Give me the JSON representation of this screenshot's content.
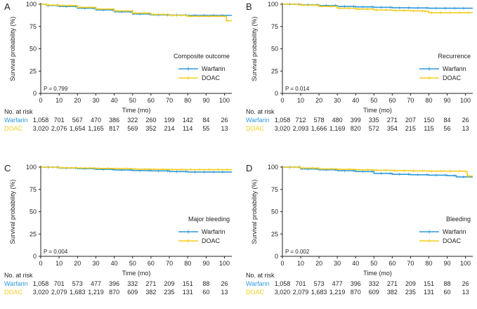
{
  "colors": {
    "warfarin": "#2e9ad8",
    "doac": "#f2cd1f",
    "axis": "#231f20"
  },
  "common": {
    "xlabel": "Time (mo)",
    "ylabel": "Survival probability (%)",
    "risk_header": "No. at risk",
    "xticks": [
      0,
      10,
      20,
      30,
      40,
      50,
      60,
      70,
      80,
      90,
      100
    ],
    "yticks": [
      0,
      25,
      50,
      75,
      100
    ],
    "xlim": [
      0,
      104
    ],
    "ylim": [
      0,
      100
    ]
  },
  "chart_data": [
    {
      "panel": "A",
      "type": "line",
      "title": "Composite outcome",
      "p_value": "P = 0.799",
      "legend_position": "bottom-right",
      "series": [
        {
          "name": "Warfarin",
          "color": "#2e9ad8",
          "points": [
            [
              0,
              100
            ],
            [
              3,
              98.6
            ],
            [
              10,
              97.5
            ],
            [
              20,
              95.5
            ],
            [
              30,
              93.5
            ],
            [
              40,
              91.5
            ],
            [
              50,
              89
            ],
            [
              60,
              88
            ],
            [
              70,
              87.8
            ],
            [
              80,
              87.5
            ],
            [
              90,
              87.5
            ],
            [
              104,
              87.5
            ]
          ]
        },
        {
          "name": "DOAC",
          "color": "#f2cd1f",
          "points": [
            [
              0,
              100
            ],
            [
              3,
              99
            ],
            [
              10,
              98.5
            ],
            [
              20,
              96.5
            ],
            [
              30,
              94.5
            ],
            [
              40,
              92.5
            ],
            [
              50,
              90
            ],
            [
              60,
              88.5
            ],
            [
              70,
              87.5
            ],
            [
              80,
              86.5
            ],
            [
              100,
              86.5
            ],
            [
              101,
              81.5
            ],
            [
              104,
              81.5
            ]
          ]
        }
      ],
      "risk_table": [
        {
          "name": "Warfarin",
          "values": [
            "1,058",
            "701",
            "567",
            "470",
            "386",
            "322",
            "260",
            "199",
            "142",
            "84",
            "26"
          ]
        },
        {
          "name": "DOAC",
          "values": [
            "3,020",
            "2,076",
            "1,654",
            "1,165",
            "817",
            "569",
            "352",
            "214",
            "114",
            "55",
            "13"
          ]
        }
      ]
    },
    {
      "panel": "B",
      "type": "line",
      "title": "Recurrence",
      "p_value": "P = 0.014",
      "legend_position": "bottom-right",
      "series": [
        {
          "name": "Warfarin",
          "color": "#2e9ad8",
          "points": [
            [
              0,
              100
            ],
            [
              10,
              99.3
            ],
            [
              20,
              98.5
            ],
            [
              30,
              97.5
            ],
            [
              40,
              97
            ],
            [
              50,
              96.5
            ],
            [
              60,
              96
            ],
            [
              70,
              95.8
            ],
            [
              80,
              95.5
            ],
            [
              104,
              95.5
            ]
          ]
        },
        {
          "name": "DOAC",
          "color": "#f2cd1f",
          "points": [
            [
              0,
              100
            ],
            [
              10,
              99
            ],
            [
              20,
              97.5
            ],
            [
              30,
              95.5
            ],
            [
              40,
              94.5
            ],
            [
              50,
              93.5
            ],
            [
              60,
              93
            ],
            [
              70,
              92.5
            ],
            [
              78,
              92
            ],
            [
              80,
              90.5
            ],
            [
              104,
              90.5
            ]
          ]
        }
      ],
      "risk_table": [
        {
          "name": "Warfarin",
          "values": [
            "1,058",
            "712",
            "578",
            "480",
            "399",
            "335",
            "271",
            "207",
            "150",
            "84",
            "26"
          ]
        },
        {
          "name": "DOAC",
          "values": [
            "3,020",
            "2,093",
            "1,666",
            "1,169",
            "820",
            "572",
            "354",
            "215",
            "115",
            "56",
            "13"
          ]
        }
      ]
    },
    {
      "panel": "C",
      "type": "line",
      "title": "Major bleeding",
      "p_value": "P = 0.004",
      "legend_position": "bottom-right",
      "series": [
        {
          "name": "Warfarin",
          "color": "#2e9ad8",
          "points": [
            [
              0,
              100
            ],
            [
              10,
              99
            ],
            [
              20,
              98.3
            ],
            [
              30,
              97.5
            ],
            [
              40,
              96.8
            ],
            [
              50,
              96.2
            ],
            [
              60,
              95.8
            ],
            [
              70,
              95
            ],
            [
              80,
              94.5
            ],
            [
              104,
              94.5
            ]
          ]
        },
        {
          "name": "DOAC",
          "color": "#f2cd1f",
          "points": [
            [
              0,
              100
            ],
            [
              10,
              99.3
            ],
            [
              20,
              99
            ],
            [
              30,
              98.6
            ],
            [
              40,
              98.3
            ],
            [
              50,
              97.8
            ],
            [
              60,
              97.5
            ],
            [
              70,
              97.3
            ],
            [
              80,
              97.2
            ],
            [
              104,
              97
            ]
          ]
        }
      ],
      "risk_table": [
        {
          "name": "Warfarin",
          "values": [
            "1,058",
            "701",
            "573",
            "477",
            "396",
            "332",
            "271",
            "209",
            "151",
            "88",
            "26"
          ]
        },
        {
          "name": "DOAC",
          "values": [
            "3,020",
            "2,079",
            "1,683",
            "1,219",
            "870",
            "609",
            "382",
            "235",
            "131",
            "60",
            "13"
          ]
        }
      ]
    },
    {
      "panel": "D",
      "type": "line",
      "title": "Bleeding",
      "p_value": "P = 0.002",
      "legend_position": "bottom-right",
      "series": [
        {
          "name": "Warfarin",
          "color": "#2e9ad8",
          "points": [
            [
              0,
              100
            ],
            [
              10,
              98
            ],
            [
              20,
              97
            ],
            [
              30,
              96
            ],
            [
              40,
              95
            ],
            [
              50,
              93
            ],
            [
              60,
              92
            ],
            [
              70,
              91.5
            ],
            [
              80,
              91
            ],
            [
              90,
              90.5
            ],
            [
              95,
              89
            ],
            [
              104,
              89
            ]
          ]
        },
        {
          "name": "DOAC",
          "color": "#f2cd1f",
          "points": [
            [
              0,
              100
            ],
            [
              10,
              99
            ],
            [
              20,
              98
            ],
            [
              30,
              97.5
            ],
            [
              40,
              97
            ],
            [
              50,
              96.5
            ],
            [
              60,
              96
            ],
            [
              70,
              95.8
            ],
            [
              80,
              95.5
            ],
            [
              100,
              95
            ],
            [
              101,
              90
            ],
            [
              104,
              90
            ]
          ]
        }
      ],
      "risk_table": [
        {
          "name": "Warfarin",
          "values": [
            "1,058",
            "701",
            "573",
            "477",
            "396",
            "332",
            "271",
            "209",
            "151",
            "88",
            "26"
          ]
        },
        {
          "name": "DOAC",
          "values": [
            "3,020",
            "2,079",
            "1,683",
            "1,219",
            "870",
            "609",
            "382",
            "235",
            "131",
            "60",
            "13"
          ]
        }
      ]
    }
  ]
}
